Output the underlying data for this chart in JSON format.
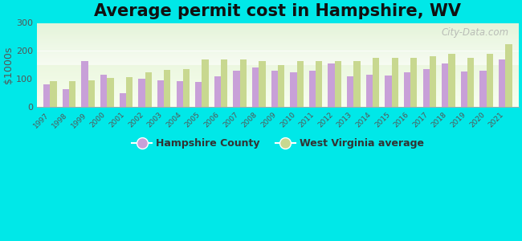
{
  "title": "Average permit cost in Hampshire, WV",
  "ylabel": "$1000s",
  "years": [
    1997,
    1998,
    1999,
    2000,
    2001,
    2002,
    2003,
    2004,
    2005,
    2006,
    2007,
    2008,
    2009,
    2010,
    2011,
    2012,
    2013,
    2014,
    2015,
    2016,
    2017,
    2018,
    2019,
    2020,
    2021
  ],
  "hampshire": [
    80,
    63,
    165,
    115,
    50,
    100,
    97,
    93,
    90,
    110,
    130,
    140,
    130,
    125,
    130,
    155,
    110,
    115,
    113,
    125,
    137,
    155,
    127,
    130,
    170
  ],
  "wv_avg": [
    93,
    93,
    97,
    103,
    108,
    125,
    133,
    137,
    170,
    170,
    170,
    165,
    150,
    165,
    165,
    163,
    165,
    175,
    175,
    175,
    180,
    190,
    175,
    190,
    225
  ],
  "hampshire_color": "#c8a0d8",
  "wv_color": "#c8d890",
  "bg_color": "#00e8e8",
  "ylim": [
    0,
    300
  ],
  "yticks": [
    0,
    100,
    200,
    300
  ],
  "title_fontsize": 15,
  "bar_width": 0.35,
  "watermark_text": "City-Data.com"
}
